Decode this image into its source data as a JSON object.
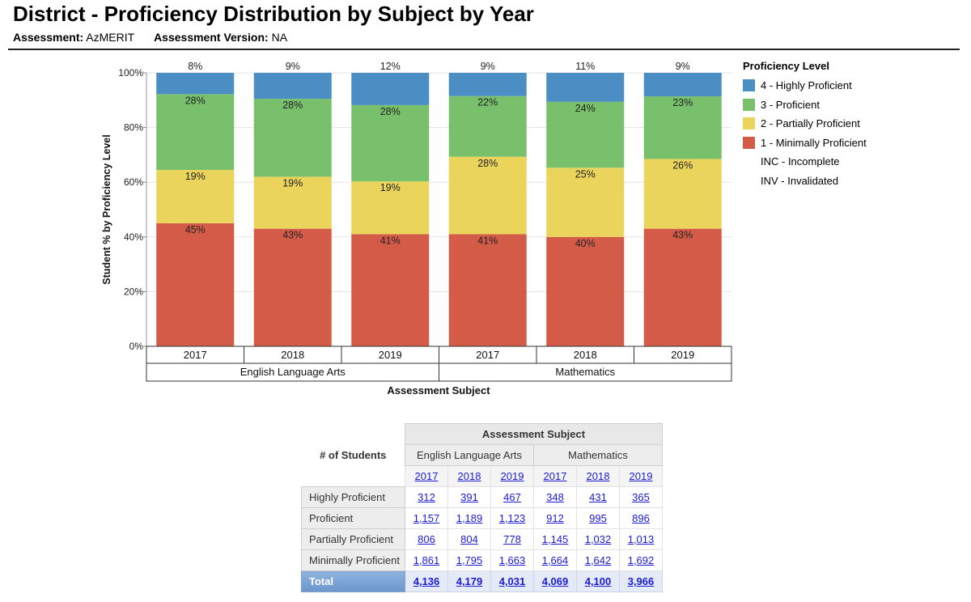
{
  "header": {
    "title": "District - Proficiency Distribution by Subject by Year",
    "assessment_label": "Assessment:",
    "assessment_value": "AzMERIT",
    "version_label": "Assessment Version:",
    "version_value": "NA"
  },
  "legend": {
    "title": "Proficiency Level",
    "items": [
      {
        "label": "4 - Highly Proficient",
        "color": "#4a8ec4"
      },
      {
        "label": "3 - Proficient",
        "color": "#78c06c"
      },
      {
        "label": "2 - Partially Proficient",
        "color": "#ebd45c"
      },
      {
        "label": "1 - Minimally Proficient",
        "color": "#d55b49"
      },
      {
        "label": "INC - Incomplete",
        "color": ""
      },
      {
        "label": "INV - Invalidated",
        "color": ""
      }
    ]
  },
  "chart_data": {
    "type": "bar",
    "stacked": true,
    "ylabel": "Student % by Proficiency Level",
    "xlabel": "Assessment Subject",
    "ylim": [
      0,
      100
    ],
    "yticks": [
      "0%",
      "20%",
      "40%",
      "60%",
      "80%",
      "100%"
    ],
    "grid": true,
    "legend_position": "right",
    "groups": [
      {
        "name": "English Language Arts",
        "categories": [
          "2017",
          "2018",
          "2019"
        ]
      },
      {
        "name": "Mathematics",
        "categories": [
          "2017",
          "2018",
          "2019"
        ]
      }
    ],
    "categories": [
      "2017",
      "2018",
      "2019",
      "2017",
      "2018",
      "2019"
    ],
    "series": [
      {
        "name": "1 - Minimally Proficient",
        "color": "#d55b49",
        "values": [
          45,
          43,
          41,
          41,
          40,
          43
        ],
        "labels": [
          "45%",
          "43%",
          "41%",
          "41%",
          "40%",
          "43%"
        ]
      },
      {
        "name": "2 - Partially Proficient",
        "color": "#ebd45c",
        "values": [
          19.5,
          19,
          19.3,
          28.3,
          25.3,
          25.5
        ],
        "labels": [
          "19%",
          "19%",
          "19%",
          "28%",
          "25%",
          "26%"
        ]
      },
      {
        "name": "3 - Proficient",
        "color": "#78c06c",
        "values": [
          27.7,
          28.5,
          27.9,
          22.2,
          24.1,
          22.9
        ],
        "labels": [
          "28%",
          "28%",
          "28%",
          "22%",
          "24%",
          "23%"
        ]
      },
      {
        "name": "4 - Highly Proficient",
        "color": "#4a8ec4",
        "values": [
          7.8,
          9.5,
          11.8,
          8.5,
          10.6,
          8.6
        ],
        "labels": [
          "8%",
          "9%",
          "12%",
          "9%",
          "11%",
          "9%"
        ]
      }
    ]
  },
  "table": {
    "corner_label": "# of Students",
    "header": "Assessment Subject",
    "subjects": [
      "English Language Arts",
      "Mathematics"
    ],
    "years": [
      "2017",
      "2018",
      "2019",
      "2017",
      "2018",
      "2019"
    ],
    "rows": [
      {
        "label": "Highly Proficient",
        "values": [
          "312",
          "391",
          "467",
          "348",
          "431",
          "365"
        ]
      },
      {
        "label": "Proficient",
        "values": [
          "1,157",
          "1,189",
          "1,123",
          "912",
          "995",
          "896"
        ]
      },
      {
        "label": "Partially Proficient",
        "values": [
          "806",
          "804",
          "778",
          "1,145",
          "1,032",
          "1,013"
        ]
      },
      {
        "label": "Minimally Proficient",
        "values": [
          "1,861",
          "1,795",
          "1,663",
          "1,664",
          "1,642",
          "1,692"
        ]
      }
    ],
    "total": {
      "label": "Total",
      "values": [
        "4,136",
        "4,179",
        "4,031",
        "4,069",
        "4,100",
        "3,966"
      ]
    }
  }
}
